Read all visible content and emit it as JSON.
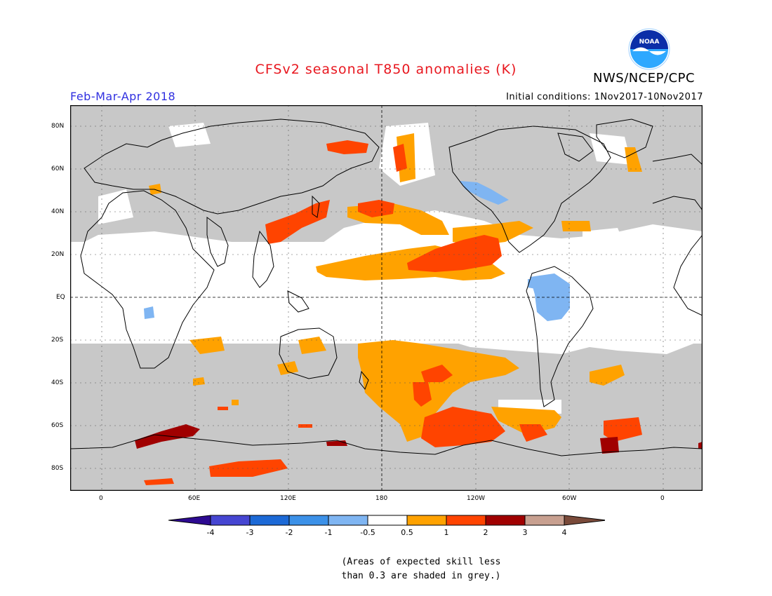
{
  "header": {
    "title": "CFSv2 seasonal T850 anomalies (K)",
    "season": "Feb-Mar-Apr 2018",
    "initial_conditions": "Initial conditions: 1Nov2017-10Nov2017",
    "agency": "NWS/NCEP/CPC",
    "logo_text": "NOAA"
  },
  "map": {
    "lat_labels": [
      "80N",
      "60N",
      "40N",
      "20N",
      "EQ",
      "20S",
      "40S",
      "60S",
      "80S"
    ],
    "lon_labels": [
      "0",
      "60E",
      "120E",
      "180",
      "120W",
      "60W",
      "0"
    ],
    "colors": {
      "skill_grey": "#c8c8c8",
      "neg_light": "#7fb5f2",
      "pos_0_5_1": "#ffa200",
      "pos_1_2": "#ff4400",
      "pos_2_3": "#a00000"
    }
  },
  "colorbar": {
    "ticks": [
      "-4",
      "-3",
      "-2",
      "-1",
      "-0.5",
      "0.5",
      "1",
      "2",
      "3",
      "4"
    ],
    "colors": [
      "#2d0a91",
      "#4646d2",
      "#1c69d6",
      "#3c91e8",
      "#7fb5f2",
      "#ffffff",
      "#ffa200",
      "#ff4400",
      "#a00000",
      "#c8a090",
      "#7a4a3a"
    ]
  },
  "footer": {
    "note_line1": "(Areas of expected skill less",
    "note_line2": "than 0.3 are shaded in grey.)"
  }
}
